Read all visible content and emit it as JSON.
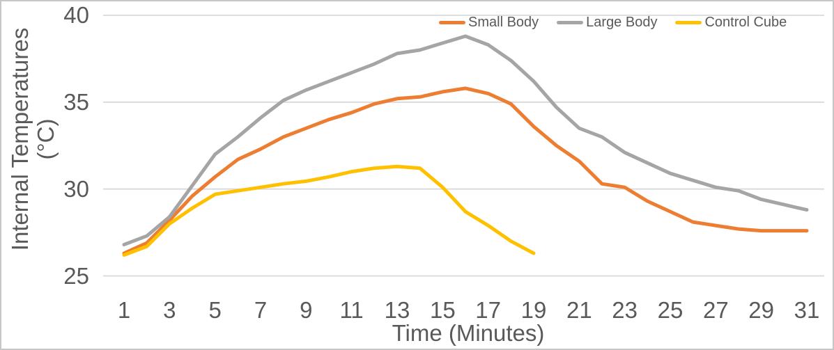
{
  "chart_data": {
    "type": "line",
    "title": "",
    "xlabel": "Time (Minutes)",
    "ylabel_line1": "Internal Temperatures",
    "ylabel_line2": "(°C)",
    "x_ticks": [
      1,
      3,
      5,
      7,
      9,
      11,
      13,
      15,
      17,
      19,
      21,
      23,
      25,
      27,
      29,
      31
    ],
    "y_ticks": [
      25,
      30,
      35,
      40
    ],
    "x_range": [
      1,
      31
    ],
    "y_range": [
      25,
      40
    ],
    "grid": "horizontal",
    "gridline_color": "#D9D9D9",
    "text_color": "#595959",
    "legend_position": "top-right",
    "x": [
      1,
      2,
      3,
      4,
      5,
      6,
      7,
      8,
      9,
      10,
      11,
      12,
      13,
      14,
      15,
      16,
      17,
      18,
      19,
      20,
      21,
      22,
      23,
      24,
      25,
      26,
      27,
      28,
      29,
      30,
      31
    ],
    "series": [
      {
        "name": "Small Body",
        "color": "#ED7D31",
        "values": [
          26.3,
          26.9,
          28.2,
          29.6,
          30.7,
          31.7,
          32.3,
          33.0,
          33.5,
          34.0,
          34.4,
          34.9,
          35.2,
          35.3,
          35.6,
          35.8,
          35.5,
          34.9,
          33.6,
          32.5,
          31.6,
          30.3,
          30.1,
          29.3,
          28.7,
          28.1,
          27.9,
          27.7,
          27.6,
          27.6,
          27.6
        ]
      },
      {
        "name": "Large Body",
        "color": "#A5A5A5",
        "values": [
          26.8,
          27.3,
          28.4,
          30.2,
          32.0,
          33.0,
          34.1,
          35.1,
          35.7,
          36.2,
          36.7,
          37.2,
          37.8,
          38.0,
          38.4,
          38.8,
          38.3,
          37.4,
          36.2,
          34.7,
          33.5,
          33.0,
          32.1,
          31.5,
          30.9,
          30.5,
          30.1,
          29.9,
          29.4,
          29.1,
          28.8
        ]
      },
      {
        "name": "Control Cube",
        "color": "#FFC000",
        "values": [
          26.2,
          26.7,
          28.0,
          28.9,
          29.7,
          29.9,
          30.1,
          30.3,
          30.45,
          30.7,
          31.0,
          31.2,
          31.3,
          31.2,
          30.1,
          28.7,
          27.9,
          27.0,
          26.3,
          null,
          null,
          null,
          null,
          null,
          null,
          null,
          null,
          null,
          null,
          null,
          null
        ]
      }
    ]
  }
}
